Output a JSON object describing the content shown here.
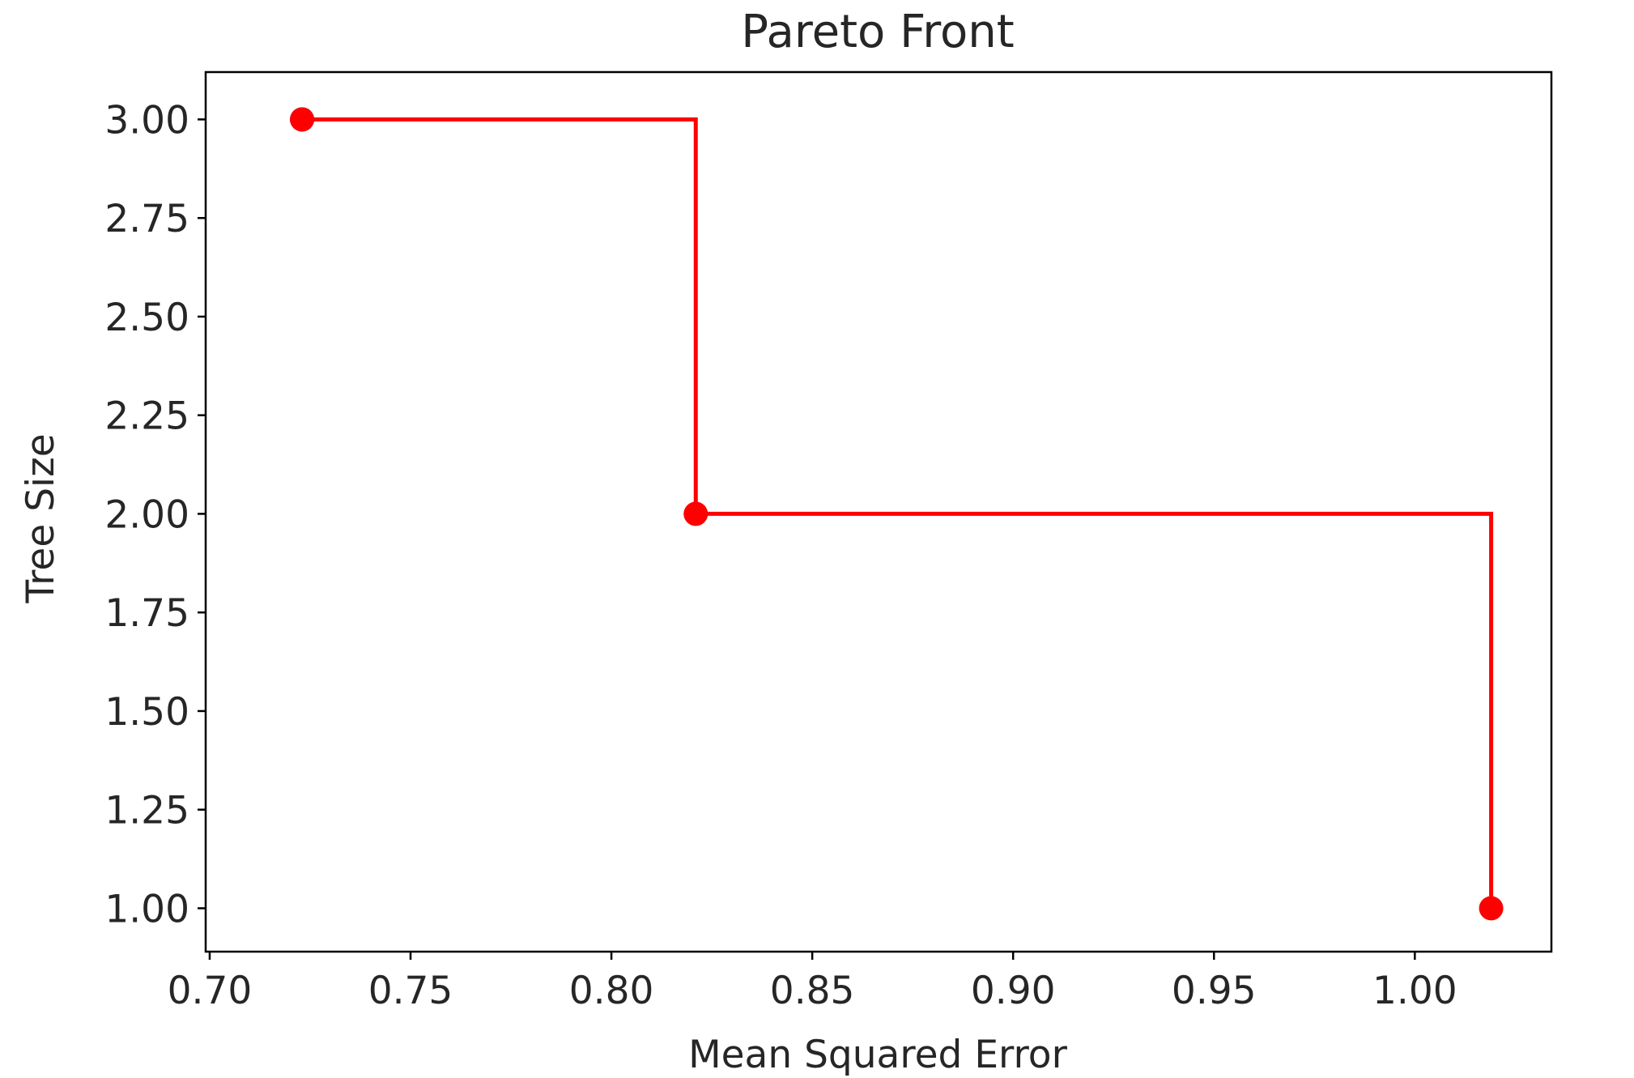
{
  "chart_data": {
    "type": "line",
    "title": "Pareto Front",
    "xlabel": "Mean Squared Error",
    "ylabel": "Tree Size",
    "xlim": [
      0.699,
      1.034
    ],
    "ylim": [
      0.89,
      3.12
    ],
    "grid": false,
    "legend": null,
    "xticks": [
      0.7,
      0.75,
      0.8,
      0.85,
      0.9,
      0.95,
      1.0
    ],
    "xtick_labels": [
      "0.70",
      "0.75",
      "0.80",
      "0.85",
      "0.90",
      "0.95",
      "1.00"
    ],
    "yticks": [
      1.0,
      1.25,
      1.5,
      1.75,
      2.0,
      2.25,
      2.5,
      2.75,
      3.0
    ],
    "ytick_labels": [
      "1.00",
      "1.25",
      "1.50",
      "1.75",
      "2.00",
      "2.25",
      "2.50",
      "2.75",
      "3.00"
    ],
    "series": [
      {
        "kind": "step",
        "color": "#ff0000",
        "points": [
          {
            "x": 0.723,
            "y": 3.0
          },
          {
            "x": 0.821,
            "y": 2.0
          },
          {
            "x": 1.019,
            "y": 1.0
          }
        ]
      },
      {
        "kind": "scatter",
        "color": "#0000ff",
        "points": [
          {
            "x": 0.723,
            "y": 3.0
          }
        ]
      },
      {
        "kind": "scatter",
        "color": "#ff0000",
        "points": [
          {
            "x": 0.723,
            "y": 3.0
          },
          {
            "x": 0.821,
            "y": 2.0
          },
          {
            "x": 1.019,
            "y": 1.0
          }
        ]
      }
    ]
  }
}
